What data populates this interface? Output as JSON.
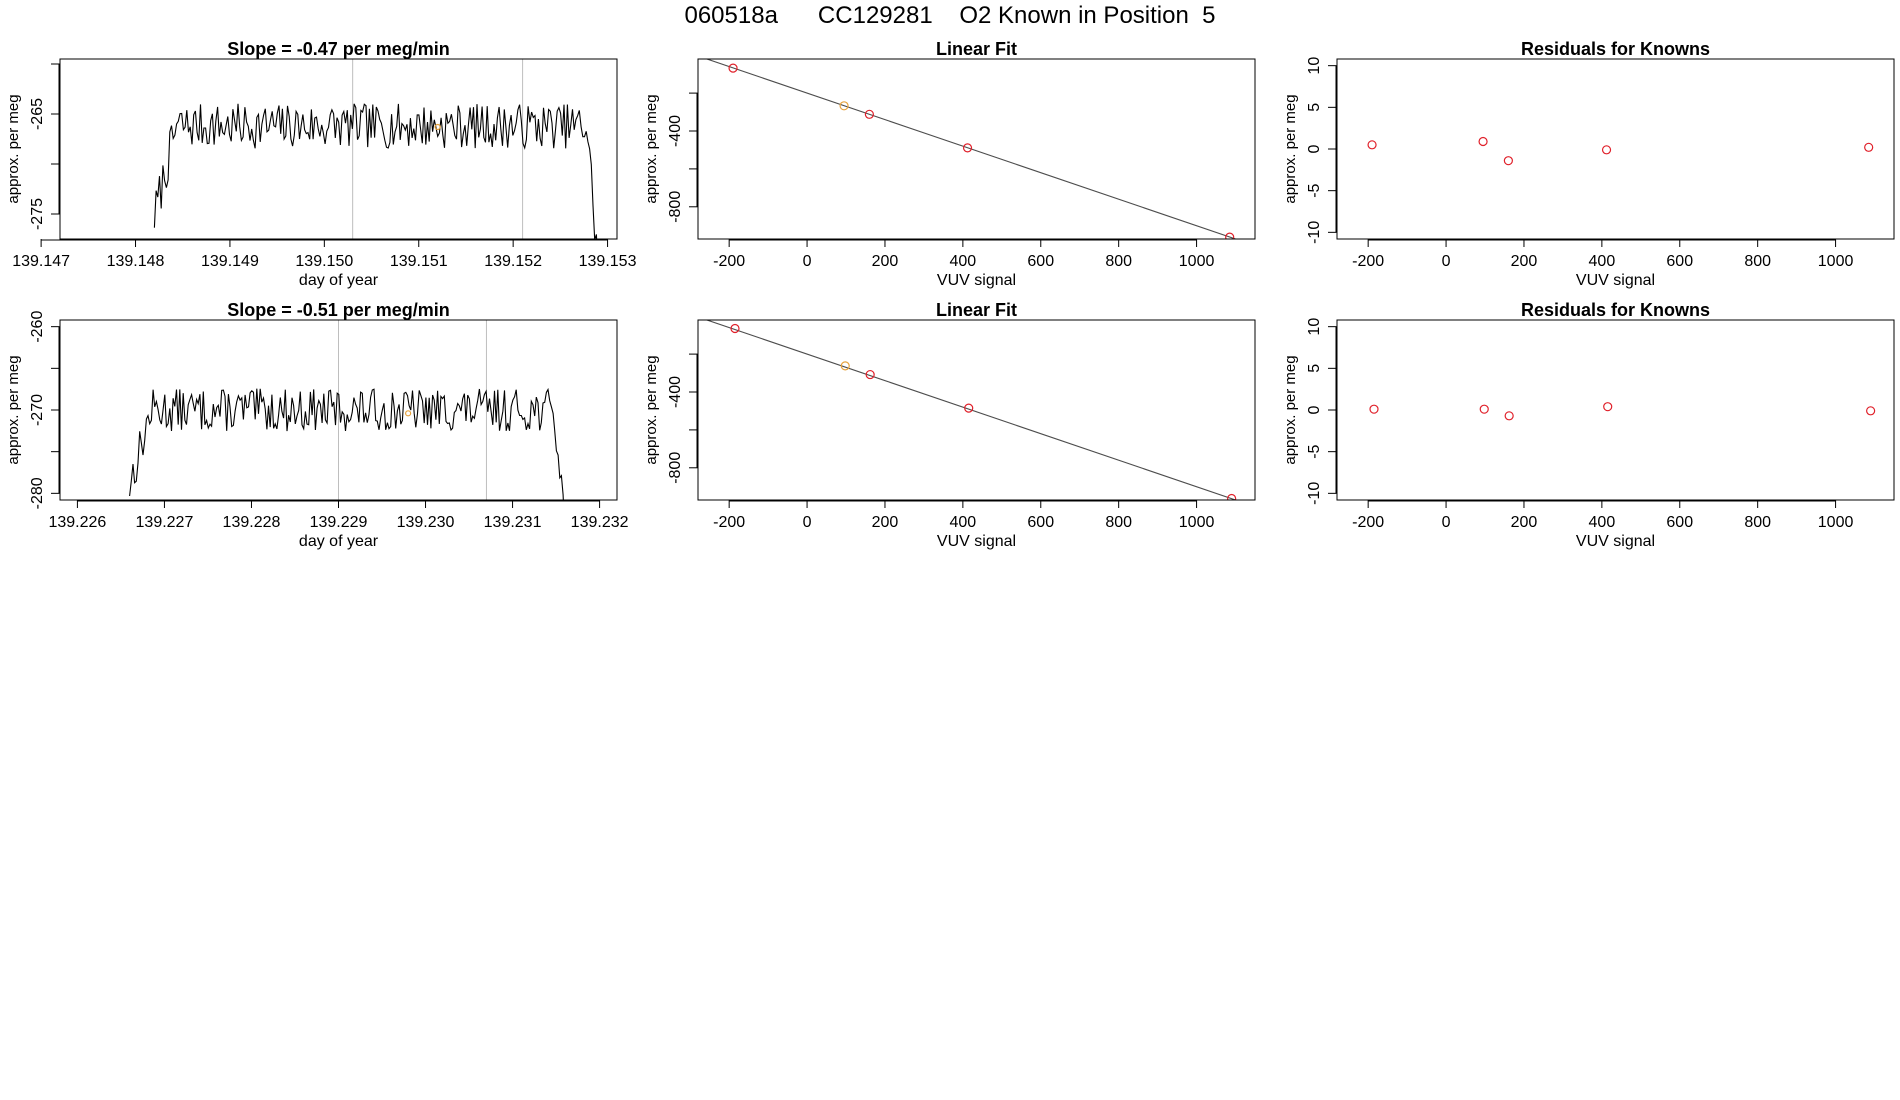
{
  "page": {
    "title": "060518a      CC129281    O2 Known in Position  5"
  },
  "colors": {
    "line": "#000000",
    "known_point": "#e0202a",
    "used_point": "#e6a23c",
    "gridline": "#bebebe",
    "fit_line": "#4d4d4d"
  },
  "chart_data": [
    {
      "id": "ts1",
      "type": "line",
      "title": "Slope =  -0.47  per meg/min",
      "xlabel": "day of year",
      "ylabel": "approx. per meg",
      "xlim": [
        139.1472,
        139.1531
      ],
      "ylim": [
        -277.5,
        -259.5
      ],
      "xticks": [
        139.147,
        139.148,
        139.149,
        139.15,
        139.151,
        139.152,
        139.153
      ],
      "xtick_labels": [
        "139.147",
        "139.148",
        "139.149",
        "139.150",
        "139.151",
        "139.152",
        "139.153"
      ],
      "yticks": [
        -275,
        -270,
        -265,
        -260
      ],
      "ytick_labels": [
        "-275",
        "",
        "-265",
        ""
      ],
      "vlines": [
        139.1503,
        139.1521
      ],
      "series_start": 139.1482,
      "series_end": 139.1529,
      "series_baseline": -266.2,
      "series_noise": 1.4,
      "series_seed": 7,
      "marker": {
        "x": 139.1512,
        "y": -266.3
      }
    },
    {
      "id": "fit1",
      "type": "scatter",
      "title": "Linear Fit",
      "xlabel": "VUV signal",
      "ylabel": "approx. per meg",
      "xlim": [
        -280,
        1150
      ],
      "ylim": [
        -970,
        -20
      ],
      "xticks": [
        -200,
        0,
        200,
        400,
        600,
        800,
        1000
      ],
      "xtick_labels": [
        "-200",
        "0",
        "200",
        "400",
        "600",
        "800",
        "1000"
      ],
      "yticks": [
        -800,
        -600,
        -400,
        -200
      ],
      "ytick_labels": [
        "-800",
        "",
        "-400",
        ""
      ],
      "fit": {
        "slope": -0.7,
        "intercept": -200
      },
      "points": [
        {
          "x": -190,
          "y": -68,
          "kind": "known"
        },
        {
          "x": 95,
          "y": -267,
          "kind": "used"
        },
        {
          "x": 160,
          "y": -312,
          "kind": "known"
        },
        {
          "x": 412,
          "y": -489,
          "kind": "known"
        },
        {
          "x": 1085,
          "y": -960,
          "kind": "known"
        }
      ]
    },
    {
      "id": "res1",
      "type": "scatter",
      "title": "Residuals for Knowns",
      "xlabel": "VUV signal",
      "ylabel": "approx. per meg",
      "xlim": [
        -280,
        1150
      ],
      "ylim": [
        -10.8,
        10.8
      ],
      "xticks": [
        -200,
        0,
        200,
        400,
        600,
        800,
        1000
      ],
      "xtick_labels": [
        "-200",
        "0",
        "200",
        "400",
        "600",
        "800",
        "1000"
      ],
      "yticks": [
        -10,
        -5,
        0,
        5,
        10
      ],
      "ytick_labels": [
        "-10",
        "-5",
        "0",
        "5",
        "10"
      ],
      "points": [
        {
          "x": -190,
          "y": 0.5,
          "kind": "known"
        },
        {
          "x": 95,
          "y": 0.9,
          "kind": "known"
        },
        {
          "x": 160,
          "y": -1.4,
          "kind": "known"
        },
        {
          "x": 412,
          "y": -0.1,
          "kind": "known"
        },
        {
          "x": 1085,
          "y": 0.2,
          "kind": "known"
        }
      ]
    },
    {
      "id": "ts2",
      "type": "line",
      "title": "Slope =  -0.51  per meg/min",
      "xlabel": "day of year",
      "ylabel": "approx. per meg",
      "xlim": [
        139.2258,
        139.2322
      ],
      "ylim": [
        -280.8,
        -259.2
      ],
      "xticks": [
        139.226,
        139.227,
        139.228,
        139.229,
        139.23,
        139.231,
        139.232
      ],
      "xtick_labels": [
        "139.226",
        "139.227",
        "139.228",
        "139.229",
        "139.230",
        "139.231",
        "139.232"
      ],
      "yticks": [
        -280,
        -275,
        -270,
        -265,
        -260
      ],
      "ytick_labels": [
        "-280",
        "",
        "-270",
        "",
        "-260"
      ],
      "vlines": [
        139.229,
        139.2307
      ],
      "series_start": 139.2266,
      "series_end": 139.2316,
      "series_baseline": -270.0,
      "series_noise": 1.6,
      "series_seed": 13,
      "marker": {
        "x": 139.2298,
        "y": -270.4
      }
    },
    {
      "id": "fit2",
      "type": "scatter",
      "title": "Linear Fit",
      "xlabel": "VUV signal",
      "ylabel": "approx. per meg",
      "xlim": [
        -280,
        1150
      ],
      "ylim": [
        -970,
        -20
      ],
      "xticks": [
        -200,
        0,
        200,
        400,
        600,
        800,
        1000
      ],
      "xtick_labels": [
        "-200",
        "0",
        "200",
        "400",
        "600",
        "800",
        "1000"
      ],
      "yticks": [
        -800,
        -600,
        -400,
        -200
      ],
      "ytick_labels": [
        "-800",
        "",
        "-400",
        ""
      ],
      "fit": {
        "slope": -0.7,
        "intercept": -200
      },
      "points": [
        {
          "x": -185,
          "y": -65,
          "kind": "known"
        },
        {
          "x": 98,
          "y": -262,
          "kind": "used"
        },
        {
          "x": 162,
          "y": -308,
          "kind": "known"
        },
        {
          "x": 415,
          "y": -485,
          "kind": "known"
        },
        {
          "x": 1090,
          "y": -962,
          "kind": "known"
        }
      ]
    },
    {
      "id": "res2",
      "type": "scatter",
      "title": "Residuals for Knowns",
      "xlabel": "VUV signal",
      "ylabel": "approx. per meg",
      "xlim": [
        -280,
        1150
      ],
      "ylim": [
        -10.8,
        10.8
      ],
      "xticks": [
        -200,
        0,
        200,
        400,
        600,
        800,
        1000
      ],
      "xtick_labels": [
        "-200",
        "0",
        "200",
        "400",
        "600",
        "800",
        "1000"
      ],
      "yticks": [
        -10,
        -5,
        0,
        5,
        10
      ],
      "ytick_labels": [
        "-10",
        "-5",
        "0",
        "5",
        "10"
      ],
      "points": [
        {
          "x": -185,
          "y": 0.1,
          "kind": "known"
        },
        {
          "x": 98,
          "y": 0.1,
          "kind": "known"
        },
        {
          "x": 162,
          "y": -0.7,
          "kind": "known"
        },
        {
          "x": 415,
          "y": 0.4,
          "kind": "known"
        },
        {
          "x": 1090,
          "y": -0.1,
          "kind": "known"
        }
      ]
    }
  ]
}
